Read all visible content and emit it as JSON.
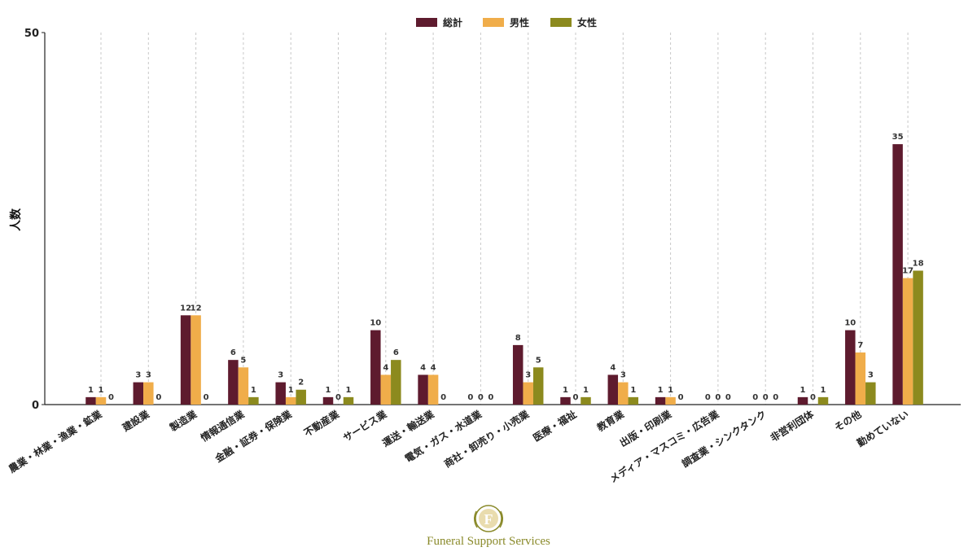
{
  "chart_data": {
    "type": "bar",
    "ylabel": "人数",
    "xlabel": "",
    "ylim": [
      0,
      50
    ],
    "y_ticks": [
      "0",
      "50"
    ],
    "grid": "vertical dashed",
    "legend_position": "top-center",
    "categories": [
      "農業・林業・漁業・鉱業",
      "建設業",
      "製造業",
      "情報通信業",
      "金融・証券・保険業",
      "不動産業",
      "サービス業",
      "運送・輸送業",
      "電気・ガス・水道業",
      "商社・卸売り・小売業",
      "医療・福祉",
      "教育業",
      "出版・印刷業",
      "メディア・マスコミ・広告業",
      "調査業・シンクタンク",
      "非営利団体",
      "その他",
      "勤めていない"
    ],
    "series": [
      {
        "name": "総計",
        "color": "#5e1b2e",
        "values": [
          1,
          3,
          12,
          6,
          3,
          1,
          10,
          4,
          0,
          8,
          1,
          4,
          1,
          0,
          0,
          1,
          10,
          35
        ]
      },
      {
        "name": "男性",
        "color": "#f0ad4a",
        "values": [
          1,
          3,
          12,
          5,
          1,
          0,
          4,
          4,
          0,
          3,
          0,
          3,
          1,
          0,
          0,
          0,
          7,
          17
        ]
      },
      {
        "name": "女性",
        "color": "#8c8a1e",
        "values": [
          0,
          0,
          0,
          1,
          2,
          1,
          6,
          0,
          0,
          5,
          1,
          1,
          0,
          0,
          0,
          1,
          3,
          18
        ]
      }
    ]
  },
  "watermark": {
    "letter": "F",
    "text": "Funeral Support Services",
    "color": "#8a8a2a"
  }
}
